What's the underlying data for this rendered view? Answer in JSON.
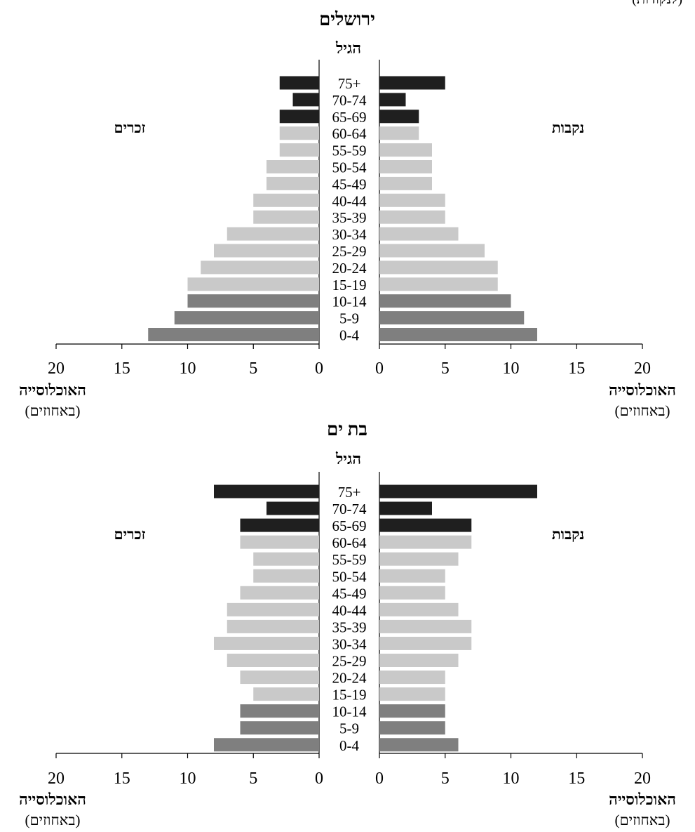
{
  "header_fragment": "(לנקודות)",
  "charts": [
    {
      "title": "ירושלים",
      "age_axis_label": "הגיל",
      "male_label": "זכרים",
      "female_label": "נקבות",
      "xlabel_main": "האוכלוסייה",
      "xlabel_unit": "(באחוזים)"
    },
    {
      "title": "בת ים",
      "age_axis_label": "הגיל",
      "male_label": "זכרים",
      "female_label": "נקבות",
      "xlabel_main": "האוכלוסייה",
      "xlabel_unit": "(באחוזים)"
    }
  ],
  "colors": {
    "old": "#1f1f1f",
    "working": "#c9c9c9",
    "young": "#7f7f7f"
  },
  "chart_data": [
    {
      "type": "bar",
      "title": "ירושלים",
      "categories": [
        "75+",
        "70-74",
        "65-69",
        "60-64",
        "55-59",
        "50-54",
        "45-49",
        "40-44",
        "35-39",
        "30-34",
        "25-29",
        "20-24",
        "15-19",
        "10-14",
        "5-9",
        "0-4"
      ],
      "series": [
        {
          "name": "זכרים",
          "values": [
            3,
            2,
            3,
            3,
            3,
            4,
            4,
            5,
            5,
            7,
            8,
            9,
            10,
            10,
            11,
            13
          ]
        },
        {
          "name": "נקבות",
          "values": [
            5,
            2,
            3,
            3,
            4,
            4,
            4,
            5,
            5,
            6,
            8,
            9,
            9,
            10,
            11,
            12
          ]
        }
      ],
      "xlim": [
        0,
        20
      ],
      "xticks": [
        0,
        5,
        10,
        15,
        20
      ],
      "xlabel": "האוכלוסייה (באחוזים)",
      "ylabel": "הגיל"
    },
    {
      "type": "bar",
      "title": "בת ים",
      "categories": [
        "75+",
        "70-74",
        "65-69",
        "60-64",
        "55-59",
        "50-54",
        "45-49",
        "40-44",
        "35-39",
        "30-34",
        "25-29",
        "20-24",
        "15-19",
        "10-14",
        "5-9",
        "0-4"
      ],
      "series": [
        {
          "name": "זכרים",
          "values": [
            8,
            4,
            6,
            6,
            5,
            5,
            6,
            7,
            7,
            8,
            7,
            6,
            5,
            6,
            6,
            8
          ]
        },
        {
          "name": "נקבות",
          "values": [
            12,
            4,
            7,
            7,
            6,
            5,
            5,
            6,
            7,
            7,
            6,
            5,
            5,
            5,
            5,
            6
          ]
        }
      ],
      "xlim": [
        0,
        20
      ],
      "xticks": [
        0,
        5,
        10,
        15,
        20
      ],
      "xlabel": "האוכלוסייה (באחוזים)",
      "ylabel": "הגיל"
    }
  ]
}
